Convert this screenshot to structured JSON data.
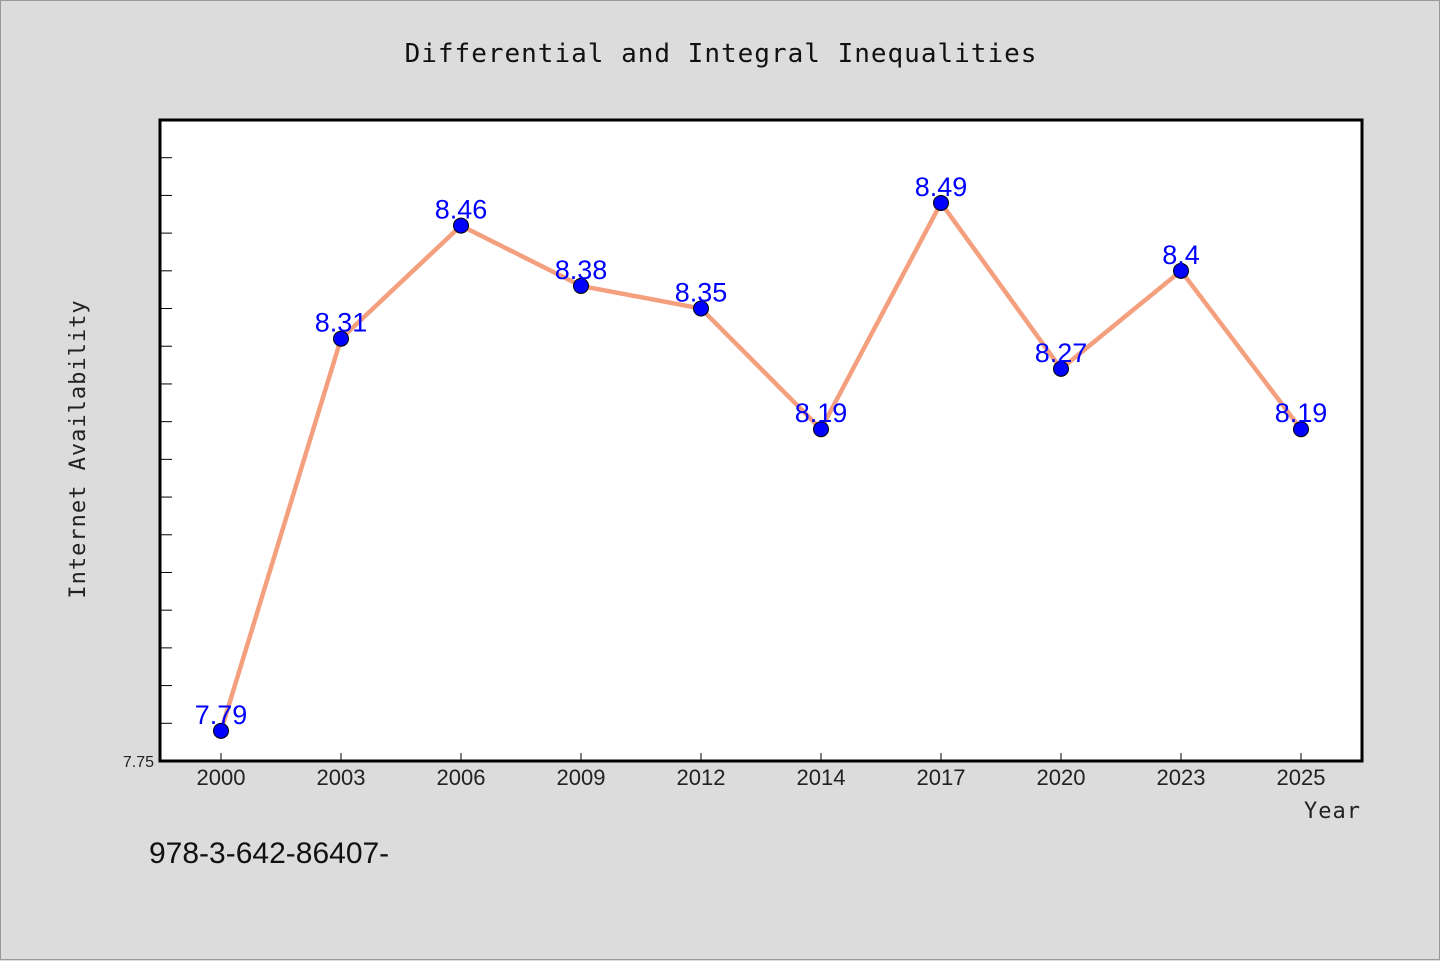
{
  "chart_data": {
    "type": "line",
    "title": "Differential and Integral Inequalities",
    "xlabel": "Year",
    "ylabel": "Internet Availability",
    "categories": [
      "2000",
      "2003",
      "2006",
      "2009",
      "2012",
      "2014",
      "2017",
      "2020",
      "2023",
      "2025"
    ],
    "series": [
      {
        "values": [
          7.79,
          8.31,
          8.46,
          8.38,
          8.35,
          8.19,
          8.49,
          8.27,
          8.4,
          8.19
        ],
        "data_labels": [
          "7.79",
          "8.31",
          "8.46",
          "8.38",
          "8.35",
          "8.19",
          "8.49",
          "8.27",
          "8.4",
          "8.19"
        ]
      }
    ],
    "ylim": [
      7.75,
      8.6
    ],
    "y_tick_labels": [
      "7.75"
    ],
    "line_color": "#f4a07f",
    "marker_color": "#0000ff",
    "label_color": "#0000ff",
    "grid": false,
    "legend": "none"
  },
  "footer": {
    "isbn": "978-3-642-86407-"
  }
}
